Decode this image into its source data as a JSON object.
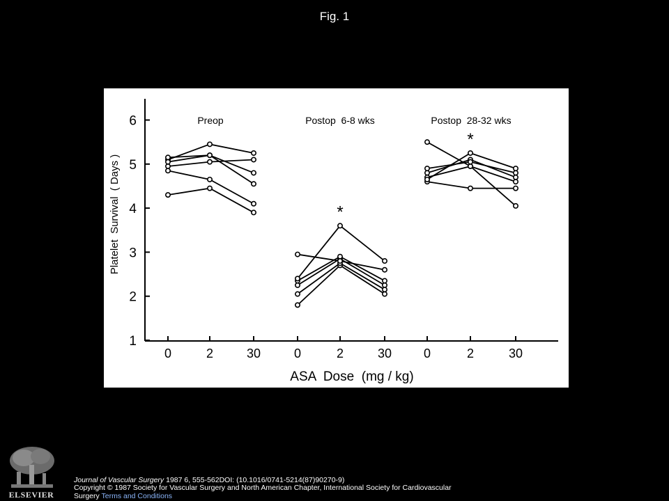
{
  "slide": {
    "title": "Fig. 1"
  },
  "footer": {
    "journal": "Journal of Vascular Surgery",
    "citation_rest": " 1987 6, 555-562DOI: (10.1016/0741-5214(87)90270-9)",
    "copyright": "Copyright © 1987 Society for Vascular Surgery and North American Chapter, International Society for Cardiovascular Surgery ",
    "terms_link": "Terms and Conditions",
    "logo_text": "ELSEVIER"
  },
  "chart_data": {
    "type": "line",
    "ylabel": "Platelet  Survival  ( Days )",
    "xlabel": "ASA  Dose  (mg / kg)",
    "ylim": [
      1,
      6.5
    ],
    "yticks": [
      "1",
      "2",
      "3",
      "4",
      "5",
      "6"
    ],
    "colors": {
      "ink": "#000000",
      "panel": "#ffffff",
      "background": "#000000"
    },
    "groups": [
      {
        "label": "Preop",
        "x_labels": [
          "0",
          "2",
          "30"
        ],
        "significance": [
          "",
          "",
          ""
        ],
        "series": [
          {
            "values": [
              4.3,
              4.45,
              3.9
            ]
          },
          {
            "values": [
              4.85,
              4.65,
              4.1
            ]
          },
          {
            "values": [
              5.1,
              5.45,
              5.25
            ]
          },
          {
            "values": [
              5.15,
              5.2,
              4.55
            ]
          },
          {
            "values": [
              4.95,
              5.05,
              5.1
            ]
          },
          {
            "values": [
              5.05,
              5.2,
              4.8
            ]
          }
        ]
      },
      {
        "label": "Postop  6-8 wks",
        "x_labels": [
          "0",
          "2",
          "30"
        ],
        "significance": [
          "",
          "*",
          ""
        ],
        "series": [
          {
            "values": [
              1.8,
              2.7,
              2.05
            ]
          },
          {
            "values": [
              2.05,
              2.75,
              2.15
            ]
          },
          {
            "values": [
              2.25,
              2.85,
              2.25
            ]
          },
          {
            "values": [
              2.35,
              2.9,
              2.35
            ]
          },
          {
            "values": [
              2.4,
              3.6,
              2.8
            ]
          },
          {
            "values": [
              2.95,
              2.8,
              2.6
            ]
          }
        ]
      },
      {
        "label": "Postop  28-32 wks",
        "x_labels": [
          "0",
          "2",
          "30"
        ],
        "significance": [
          "",
          "*",
          ""
        ],
        "series": [
          {
            "values": [
              5.5,
              4.95,
              4.05
            ]
          },
          {
            "values": [
              4.6,
              4.45,
              4.45
            ]
          },
          {
            "values": [
              4.7,
              4.95,
              4.6
            ]
          },
          {
            "values": [
              4.8,
              5.1,
              4.7
            ]
          },
          {
            "values": [
              4.9,
              5.05,
              4.8
            ]
          },
          {
            "values": [
              4.65,
              5.25,
              4.9
            ]
          }
        ]
      }
    ]
  }
}
